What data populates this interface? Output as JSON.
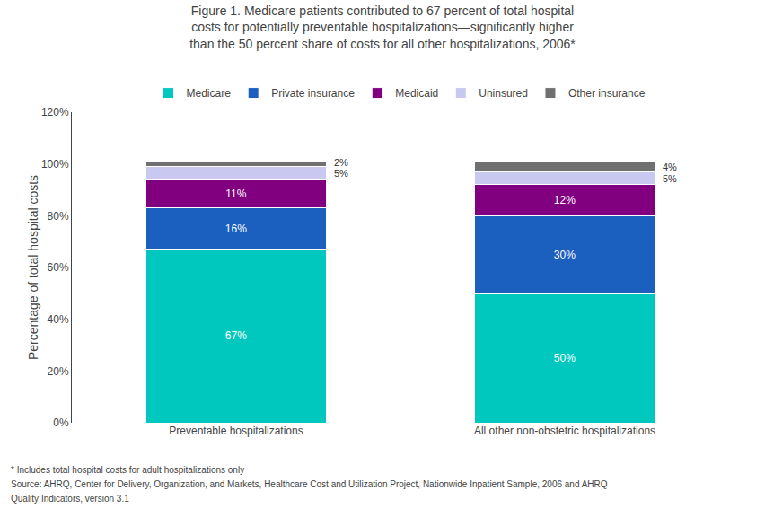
{
  "chart_data": {
    "type": "bar",
    "stacked": true,
    "title": "Figure 1. Medicare patients contributed to 67 percent of total hospital\ncosts for potentially preventable hospitalizations—significantly higher\nthan the 50 percent share of costs for all other hospitalizations, 2006*",
    "categories": [
      "Preventable hospitalizations",
      "All other non-obstetric hospitalizations"
    ],
    "series": [
      {
        "name": "Medicare",
        "color": "#00C8BE",
        "values": [
          67,
          50
        ],
        "value_labels": [
          "67%",
          "50%"
        ]
      },
      {
        "name": "Private insurance",
        "color": "#1B5FBF",
        "values": [
          16,
          30
        ],
        "value_labels": [
          "16%",
          "30%"
        ]
      },
      {
        "name": "Medicaid",
        "color": "#800080",
        "values": [
          11,
          12
        ],
        "value_labels": [
          "11%",
          "12%"
        ]
      },
      {
        "name": "Uninsured",
        "color": "#C8C8F0",
        "values": [
          5,
          5
        ],
        "value_labels": [
          "5%",
          "5%"
        ]
      },
      {
        "name": "Other insurance",
        "color": "#707070",
        "values": [
          2,
          4
        ],
        "value_labels": [
          "2%",
          "4%"
        ]
      }
    ],
    "ylabel": "Percentage of total hospital costs",
    "ylim": [
      0,
      120
    ],
    "yticks": [
      {
        "value": 0,
        "label": "0%"
      },
      {
        "value": 20,
        "label": "20%"
      },
      {
        "value": 40,
        "label": "40%"
      },
      {
        "value": 60,
        "label": "60%"
      },
      {
        "value": 80,
        "label": "80%"
      },
      {
        "value": 100,
        "label": "100%"
      },
      {
        "value": 120,
        "label": "120%"
      }
    ],
    "grid": false,
    "data_labels": true,
    "legend": "top",
    "annotations": [
      "* Includes total hospital costs for adult hospitalizations only",
      "Source: AHRQ, Center for Delivery, Organization, and Markets, Healthcare Cost and Utilization Project, Nationwide Inpatient Sample, 2006 and AHRQ",
      "Quality Indicators, version 3.1"
    ]
  }
}
